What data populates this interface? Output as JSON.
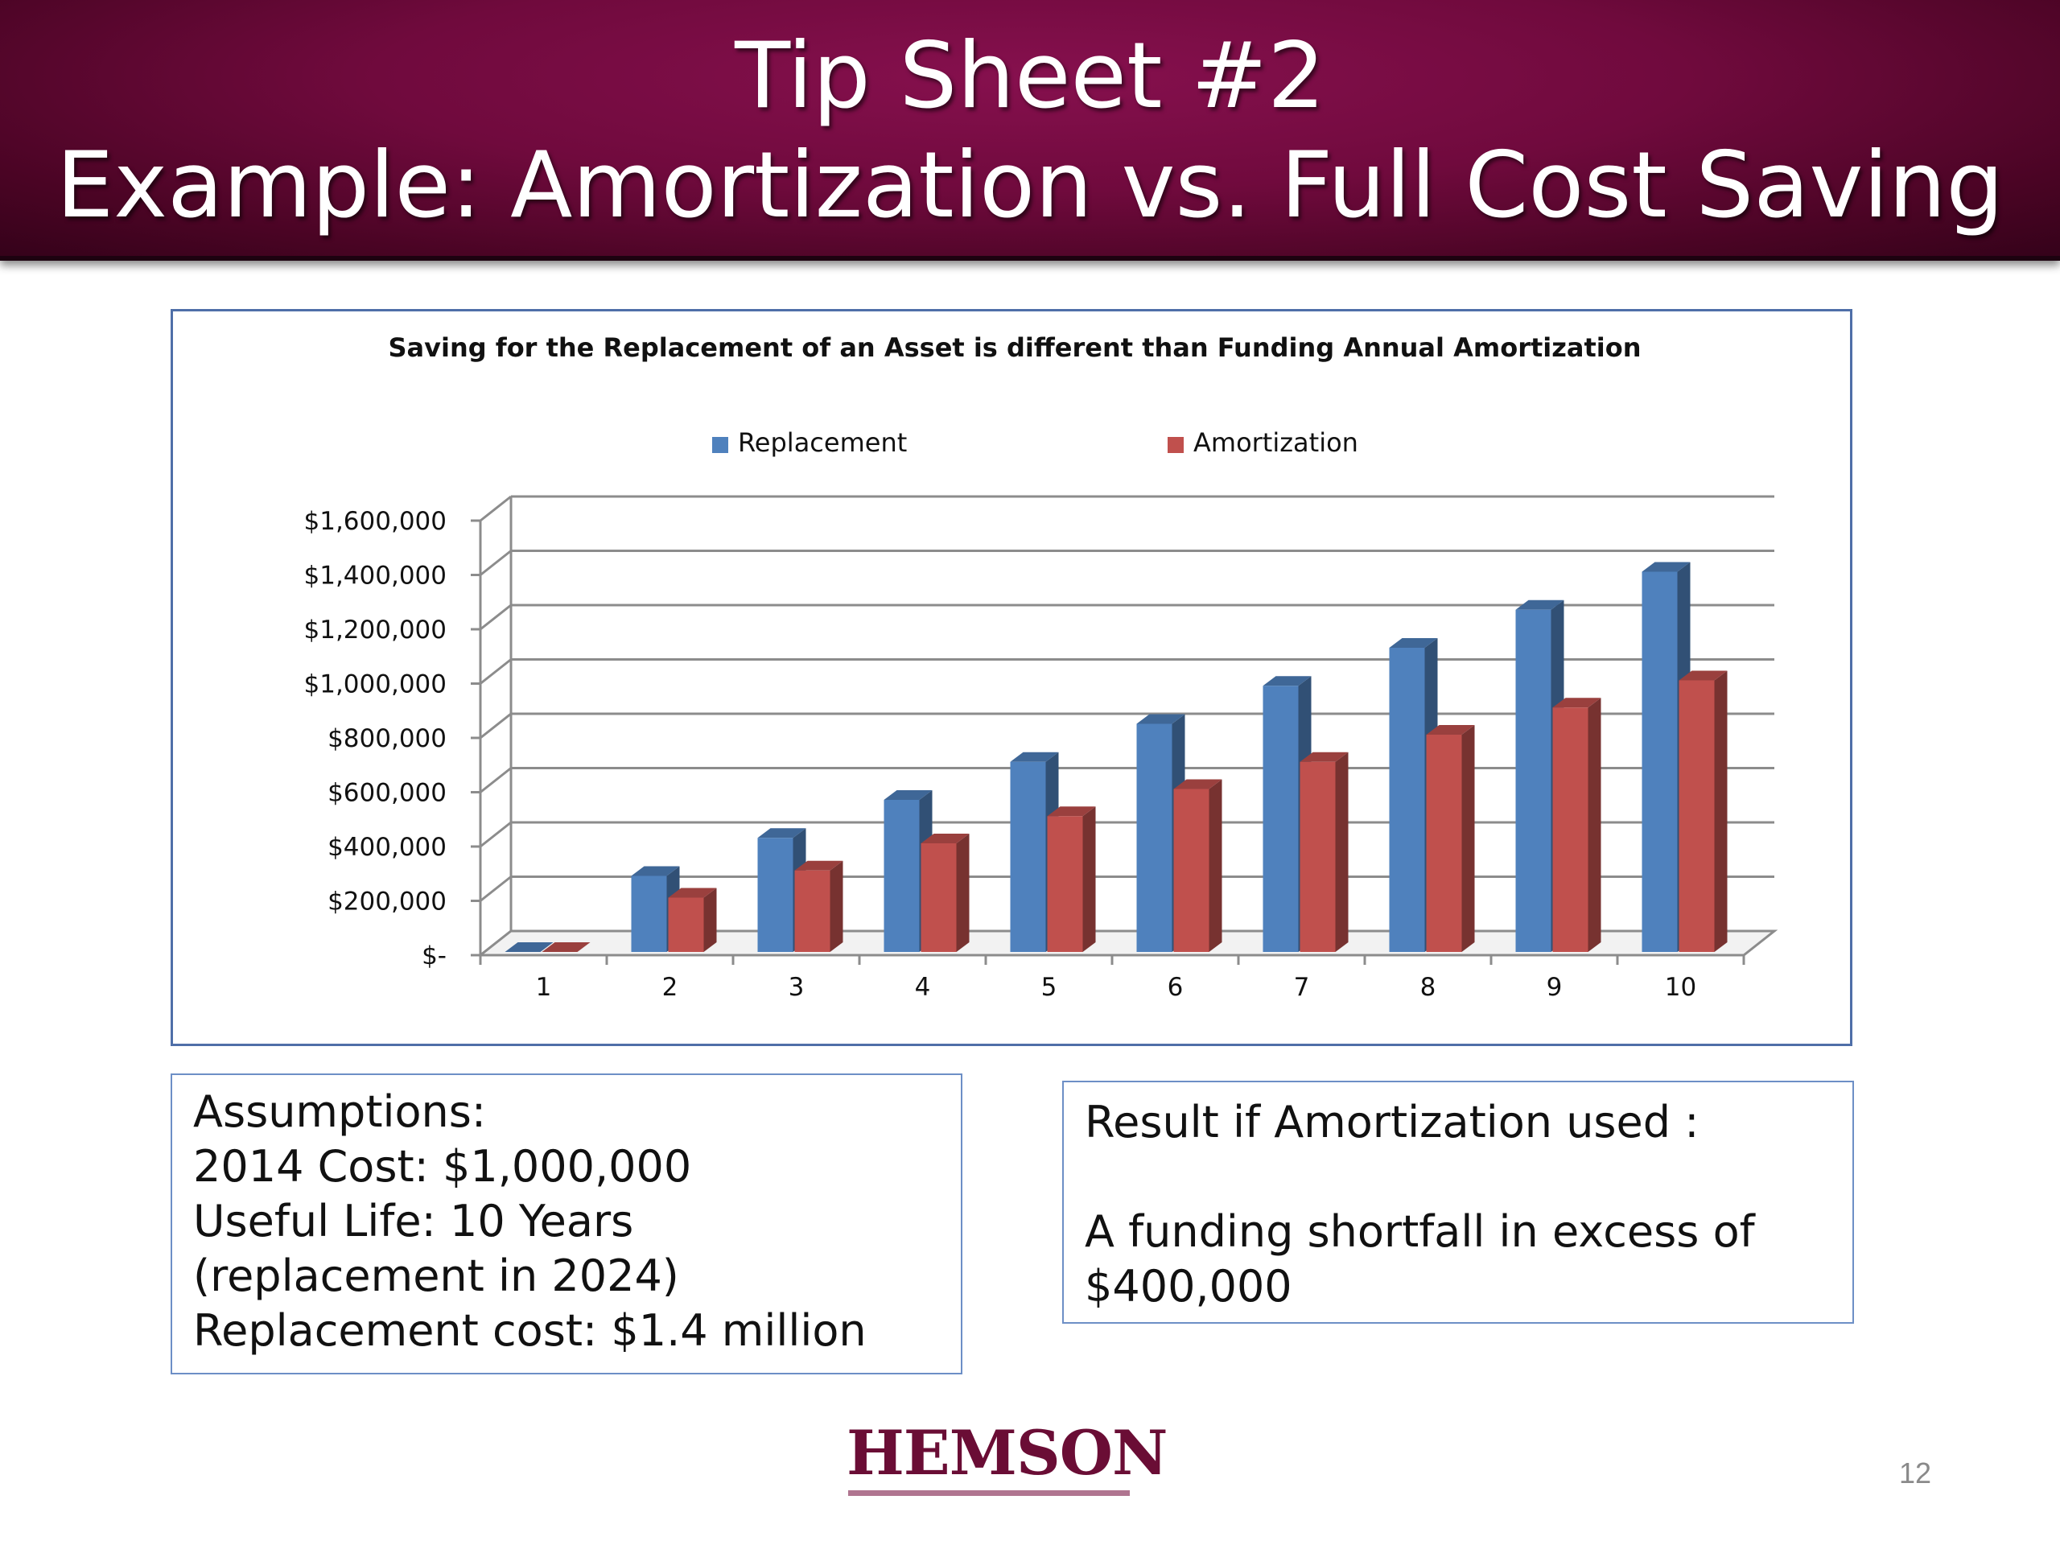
{
  "slide": {
    "title_line1": "Tip Sheet #2",
    "title_line2": "Example: Amortization vs. Full Cost Saving",
    "page_number": "12",
    "logo_text": "HEMSON"
  },
  "assumptions": {
    "lines": [
      "Assumptions:",
      "2014 Cost: $1,000,000",
      "Useful Life: 10 Years",
      "(replacement in 2024)",
      "Replacement cost: $1.4 million"
    ]
  },
  "result": {
    "heading": "Result if Amortization used :",
    "body_line1": "A funding shortfall in excess of",
    "body_line2": "$400,000"
  },
  "chart_data": {
    "type": "bar",
    "title": "Saving for the Replacement of an Asset is different than Funding Annual Amortization",
    "categories": [
      "1",
      "2",
      "3",
      "4",
      "5",
      "6",
      "7",
      "8",
      "9",
      "10"
    ],
    "series": [
      {
        "name": "Replacement",
        "color": "#4f81bd",
        "values": [
          0,
          280000,
          420000,
          560000,
          700000,
          840000,
          980000,
          1120000,
          1260000,
          1400000
        ]
      },
      {
        "name": "Amortization",
        "color": "#c0504d",
        "values": [
          0,
          200000,
          300000,
          400000,
          500000,
          600000,
          700000,
          800000,
          900000,
          1000000
        ]
      }
    ],
    "y_ticks": [
      "$-",
      "$200,000",
      "$400,000",
      "$600,000",
      "$800,000",
      "$1,000,000",
      "$1,200,000",
      "$1,400,000",
      "$1,600,000"
    ],
    "ylim": [
      0,
      1600000
    ],
    "legend_position": "top",
    "grid": true,
    "style": "3d-column"
  }
}
